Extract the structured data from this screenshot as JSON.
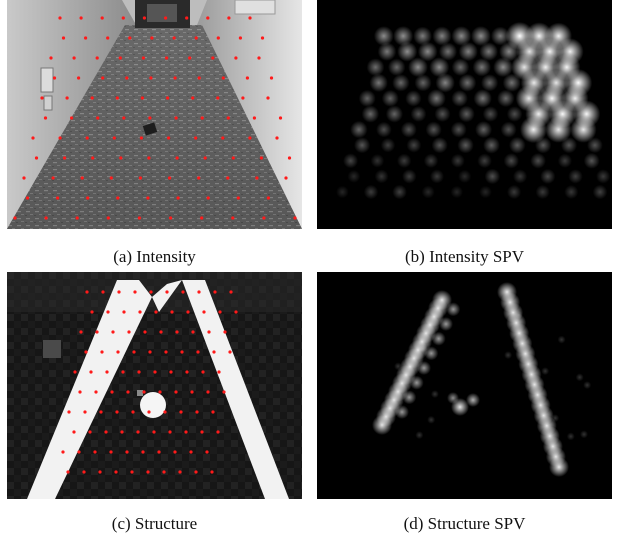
{
  "figure": {
    "panels": [
      {
        "id": "a",
        "caption": "(a) Intensity"
      },
      {
        "id": "b",
        "caption": "(b) Intensity SPV"
      },
      {
        "id": "c",
        "caption": "(c) Structure"
      },
      {
        "id": "d",
        "caption": "(d) Structure SPV"
      }
    ]
  },
  "colors": {
    "sample_point": "#ff1a1a",
    "phosphene": "#ffffff",
    "background_dark": "#000000"
  }
}
